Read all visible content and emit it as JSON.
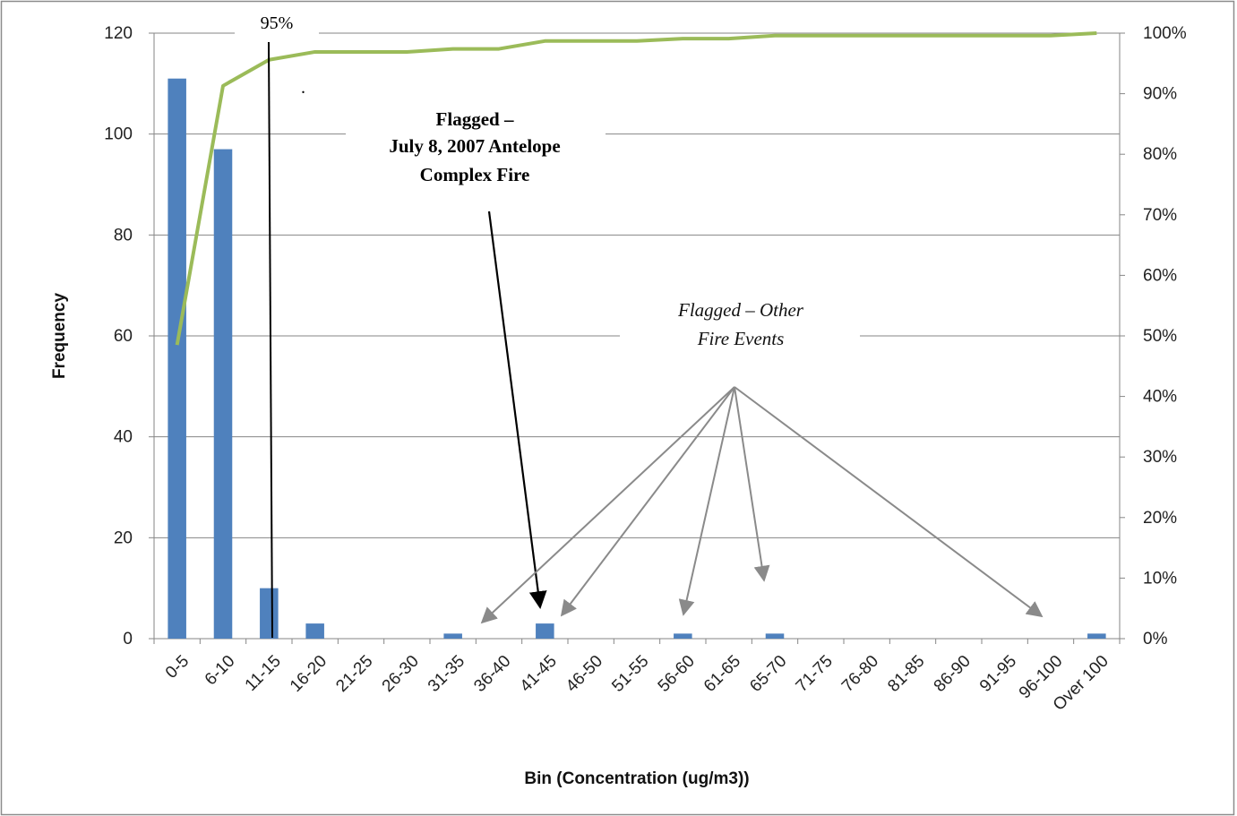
{
  "chart_data": {
    "type": "bar",
    "categories": [
      "0-5",
      "6-10",
      "11-15",
      "16-20",
      "21-25",
      "26-30",
      "31-35",
      "36-40",
      "41-45",
      "46-50",
      "51-55",
      "56-60",
      "61-65",
      "65-70",
      "71-75",
      "76-80",
      "81-85",
      "86-90",
      "91-95",
      "96-100",
      "Over 100"
    ],
    "series": [
      {
        "type": "bar",
        "values": [
          111,
          97,
          10,
          3,
          0,
          0,
          1,
          0,
          3,
          0,
          0,
          1,
          0,
          1,
          0,
          0,
          0,
          0,
          0,
          0,
          1
        ],
        "color": "#4f81bd"
      },
      {
        "type": "line",
        "axis": "right",
        "values": [
          48.5,
          91.3,
          95.6,
          96.9,
          96.9,
          96.9,
          97.4,
          97.4,
          98.7,
          98.7,
          98.7,
          99.1,
          99.1,
          99.6,
          99.6,
          99.6,
          99.6,
          99.6,
          99.6,
          99.6,
          100.0
        ],
        "color": "#9bbb59"
      }
    ],
    "xlabel": "Bin (Concentration (ug/m3))",
    "ylabel": "Frequency",
    "ylim": [
      0,
      120
    ],
    "yticks": [
      "0",
      "20",
      "40",
      "60",
      "80",
      "100",
      "120"
    ],
    "y2lim": [
      0,
      100
    ],
    "y2ticks": [
      "0%",
      "10%",
      "20%",
      "30%",
      "40%",
      "50%",
      "60%",
      "70%",
      "80%",
      "90%",
      "100%"
    ],
    "grid": true,
    "annotations": {
      "pct95_label": "95%",
      "fire_line1": "Flagged –",
      "fire_line2": "July 8, 2007 Antelope",
      "fire_line3": "Complex Fire",
      "other_line1": "Flagged – Other",
      "other_line2": "Fire Events",
      "dot": "."
    }
  }
}
